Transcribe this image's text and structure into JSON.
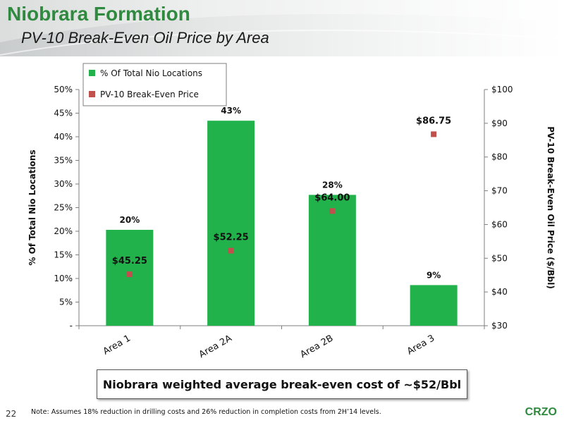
{
  "header": {
    "title": "Niobrara Formation",
    "subtitle": "PV-10 Break-Even Oil Price by Area"
  },
  "colors": {
    "bar": "#22b24c",
    "marker": "#c0504d",
    "title": "#2f8a3f"
  },
  "chart_data": {
    "type": "bar",
    "categories": [
      "Area 1",
      "Area 2A",
      "Area 2B",
      "Area 3"
    ],
    "series": [
      {
        "name": "% Of Total Nio Locations",
        "type": "bar",
        "axis": "left",
        "values": [
          20.3,
          43.4,
          27.7,
          8.6
        ],
        "labels": [
          "20%",
          "43%",
          "28%",
          "9%"
        ]
      },
      {
        "name": "PV-10 Break-Even Price",
        "type": "scatter",
        "axis": "right",
        "values": [
          45.25,
          52.25,
          64.0,
          86.75
        ],
        "labels": [
          "$45.25",
          "$52.25",
          "$64.00",
          "$86.75"
        ]
      }
    ],
    "ylabel_left": "% Of Total Nio Locations",
    "ylabel_right": "PV-10 Break-Even Oil Price ($/Bbl)",
    "ylim_left": [
      0,
      50
    ],
    "ylim_right": [
      30,
      100
    ],
    "yticks_left": [
      "-",
      "5%",
      "10%",
      "15%",
      "20%",
      "25%",
      "30%",
      "35%",
      "40%",
      "45%",
      "50%"
    ],
    "yticks_right": [
      "$30",
      "$40",
      "$50",
      "$60",
      "$70",
      "$80",
      "$90",
      "$100"
    ],
    "legend_placement": "top-left",
    "grid": false
  },
  "callout": "Niobrara weighted average break-even cost of ~$52/Bbl",
  "footer": {
    "page_number": "22",
    "note": "Note: Assumes 18% reduction in drilling costs and 26% reduction in completion costs from 2H’14 levels.",
    "logo": "CRZO"
  }
}
